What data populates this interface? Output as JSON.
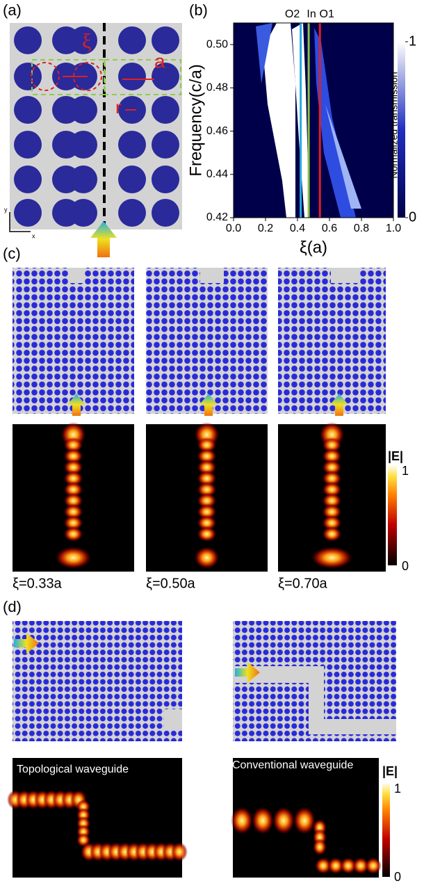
{
  "figure": {
    "a": {
      "label": "(a)",
      "xi": "ξ",
      "a": "a",
      "r": "r",
      "axis_x": "x",
      "axis_y": "y"
    },
    "b": {
      "label": "(b)"
    },
    "c": {
      "label": "(c)",
      "cases": [
        "ξ=0.33a",
        "ξ=0.50a",
        "ξ=0.70a"
      ],
      "colorbar": {
        "title": "|E|",
        "max": "1",
        "min": "0"
      }
    },
    "d": {
      "label": "(d)",
      "left": "Topological waveguide",
      "right": "Conventional waveguide",
      "colorbar": {
        "title": "|E|",
        "max": "1",
        "min": "0"
      }
    }
  },
  "chart_data": {
    "type": "heatmap",
    "xlabel": "ξ(a)",
    "ylabel": "Frequency(c/a)",
    "xlim": [
      0,
      1
    ],
    "ylim": [
      0.42,
      0.51
    ],
    "xticks": [
      {
        "value": 0,
        "label": "0.0"
      },
      0.2,
      0.4,
      0.6,
      0.8,
      {
        "value": 1,
        "label": "1.0"
      }
    ],
    "yticks": [
      0.42,
      0.44,
      0.46,
      0.48,
      {
        "value": 0.5,
        "label": "0.50"
      }
    ],
    "colorbar": {
      "label": "Normalized transmission",
      "clim": [
        0,
        1
      ],
      "ticks": [
        0,
        1
      ]
    },
    "markers": [
      {
        "name": "O2",
        "x": 0.42,
        "color": "#29a9e0"
      },
      {
        "name": "In",
        "x": 0.47,
        "color": "#8bc34a"
      },
      {
        "name": "O1",
        "x": 0.54,
        "color": "#e02020"
      }
    ]
  }
}
